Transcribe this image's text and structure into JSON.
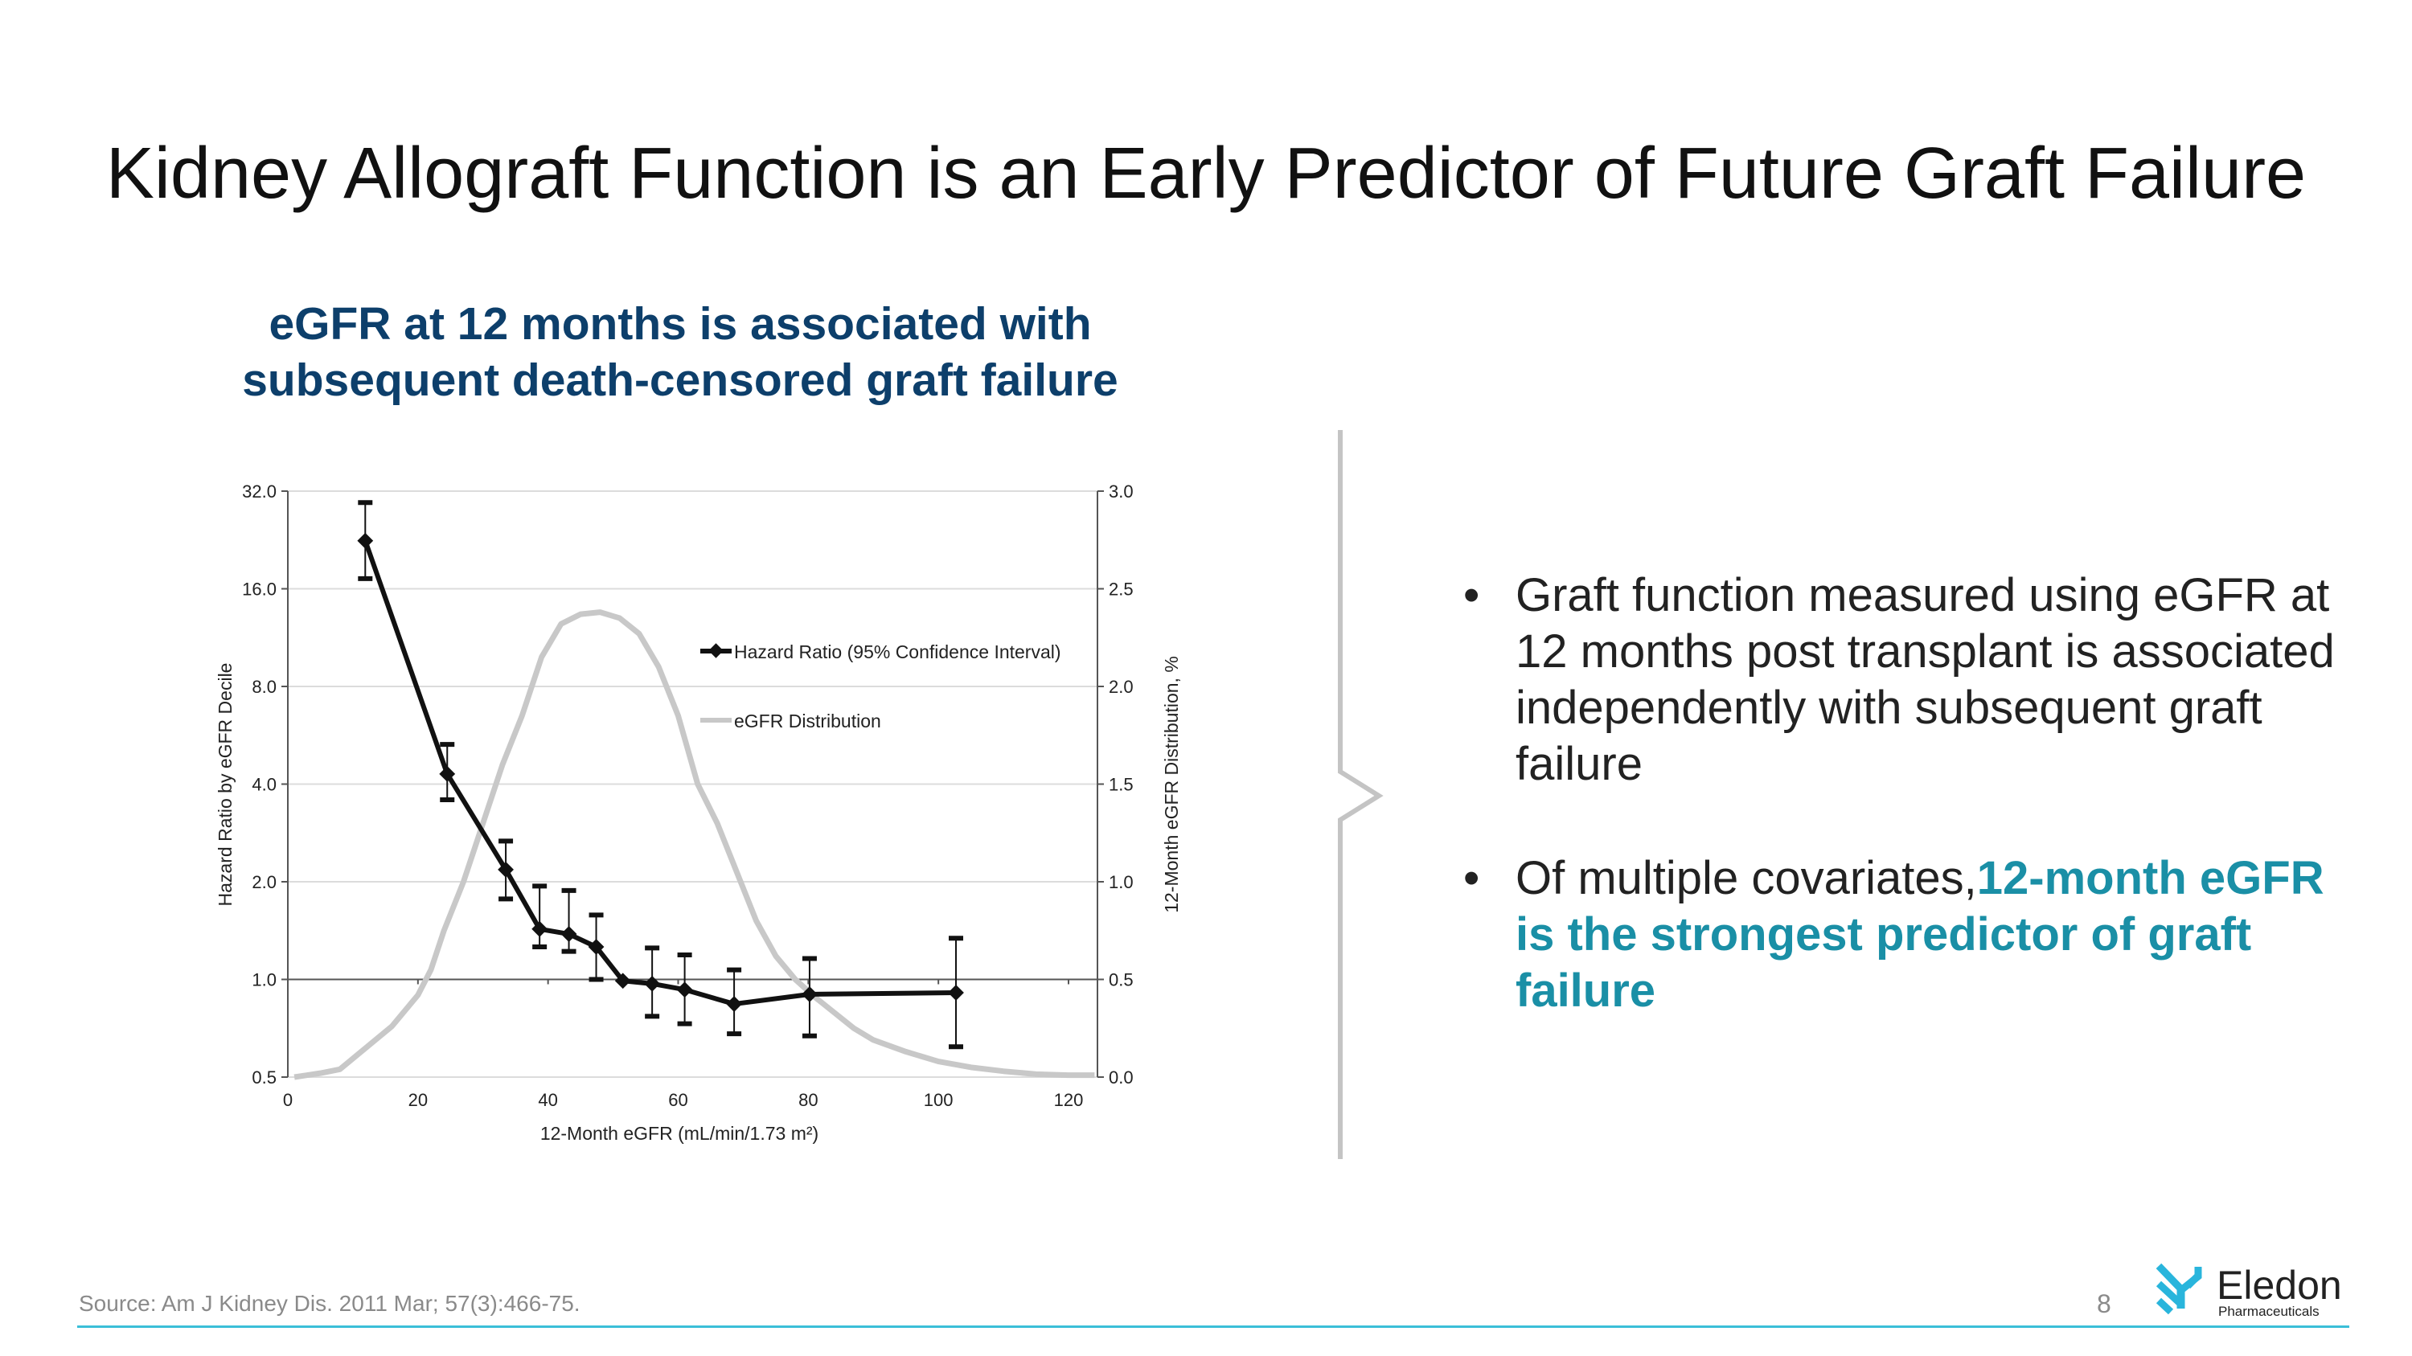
{
  "title": "Kidney Allograft Function is an Early Predictor of Future Graft Failure",
  "subtitle_lines": [
    "eGFR at 12 months is associated with",
    "subsequent death-censored graft failure"
  ],
  "bullets": [
    {
      "text": "Graft function measured using eGFR at 12 months post transplant is associated independently with subsequent graft failure"
    },
    {
      "text": "Of multiple covariates,",
      "highlight": "12-month eGFR is the strongest predictor of graft failure"
    }
  ],
  "bullet_symbol": "•",
  "footer": {
    "source": "Source: Am J Kidney Dis. 2011 Mar; 57(3):466-75.",
    "page_number": "8"
  },
  "logo": {
    "name": "Eledon",
    "tagline": "Pharmaceuticals",
    "color": "#29b5dc"
  },
  "colors": {
    "title_blue": "#0d3f6b",
    "teal": "#1a8fa6",
    "accent_line": "#3bbfd8",
    "hr_series": "#111111",
    "dist_series": "#c8c8c8"
  },
  "chart_data": {
    "type": "line",
    "xlabel": "12-Month eGFR (mL/min/1.73 m²)",
    "ylabel": "Hazard Ratio by eGFR Decile",
    "y2label": "12-Month eGFR Distribution, %",
    "xlim": [
      0,
      125
    ],
    "xticks": [
      "0",
      "20",
      "40",
      "60",
      "80",
      "100",
      "120"
    ],
    "ylim": [
      0.5,
      32
    ],
    "yscale": "log2",
    "yticks": [
      "0.5",
      "1.0",
      "2.0",
      "4.0",
      "8.0",
      "16.0",
      "32.0"
    ],
    "y2lim": [
      0,
      3
    ],
    "y2ticks": [
      "0.0",
      "0.5",
      "1.0",
      "1.5",
      "2.0",
      "2.5",
      "3.0"
    ],
    "grid": true,
    "legend_position": "upper-right",
    "series": [
      {
        "name": "Hazard Ratio (95% Confidence Interval)",
        "axis": "left",
        "x": [
          11.9,
          24.5,
          33.5,
          38.7,
          43.2,
          47.4,
          51.5,
          56,
          61,
          68.6,
          80.2,
          102.7
        ],
        "y": [
          22.5,
          4.3,
          2.18,
          1.43,
          1.38,
          1.26,
          0.99,
          0.97,
          0.93,
          0.84,
          0.9,
          0.91
        ],
        "ci_upper": [
          29.5,
          5.3,
          2.67,
          1.94,
          1.88,
          1.58,
          0.99,
          1.25,
          1.19,
          1.07,
          1.16,
          1.34
        ],
        "ci_lower": [
          17.2,
          3.58,
          1.77,
          1.26,
          1.22,
          1.0,
          0.99,
          0.77,
          0.73,
          0.68,
          0.67,
          0.62
        ]
      },
      {
        "name": "eGFR Distribution",
        "axis": "right",
        "x": [
          1,
          5,
          8,
          12,
          16,
          20,
          22,
          24,
          27,
          30,
          33,
          36,
          39,
          42,
          45,
          48,
          51,
          54,
          57,
          60,
          63,
          66,
          69,
          72,
          75,
          78,
          81,
          84,
          87,
          90,
          95,
          100,
          105,
          110,
          115,
          120,
          124
        ],
        "y": [
          0.0,
          0.02,
          0.04,
          0.15,
          0.26,
          0.42,
          0.55,
          0.75,
          1.0,
          1.3,
          1.6,
          1.85,
          2.15,
          2.32,
          2.37,
          2.38,
          2.35,
          2.27,
          2.1,
          1.85,
          1.5,
          1.3,
          1.05,
          0.8,
          0.62,
          0.5,
          0.41,
          0.33,
          0.25,
          0.19,
          0.13,
          0.08,
          0.05,
          0.03,
          0.015,
          0.01,
          0.01
        ]
      }
    ]
  }
}
